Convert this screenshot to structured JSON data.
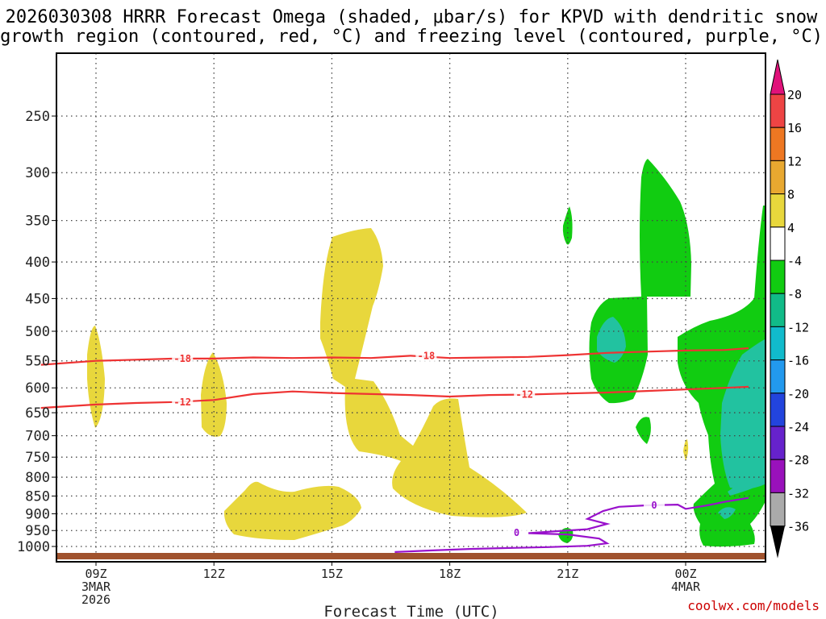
{
  "chart_data": {
    "type": "time-height cross section",
    "title_line1": "2026030308 HRRR Forecast Omega (shaded, μbar/s) for KPVD with dendritic snow",
    "title_line2": "growth region (contoured, red, °C) and freezing level (contoured, purple, °C)",
    "xlabel": "Forecast Time (UTC)",
    "credit": "coolwx.com/models",
    "x_range_hours": [
      7.6,
      25.6
    ],
    "y_range_hpa": [
      1030,
      200
    ],
    "y_ticks": [
      "250",
      "300",
      "350",
      "400",
      "450",
      "500",
      "550",
      "600",
      "650",
      "700",
      "750",
      "800",
      "850",
      "900",
      "950",
      "1000"
    ],
    "x_ticks": [
      {
        "hour": 9,
        "lines": [
          "09Z",
          "3MAR",
          "2026"
        ]
      },
      {
        "hour": 12,
        "lines": [
          "12Z"
        ]
      },
      {
        "hour": 15,
        "lines": [
          "15Z"
        ]
      },
      {
        "hour": 18,
        "lines": [
          "18Z"
        ]
      },
      {
        "hour": 21,
        "lines": [
          "21Z"
        ]
      },
      {
        "hour": 24,
        "lines": [
          "00Z",
          "4MAR"
        ]
      }
    ],
    "colorbar": {
      "labels": [
        "20",
        "16",
        "12",
        "8",
        "4",
        "-4",
        "-8",
        "-12",
        "-16",
        "-20",
        "-24",
        "-28",
        "-32",
        "-36"
      ],
      "colors": [
        "#ee4444",
        "#ee7722",
        "#e8a830",
        "#e8d73c",
        "#ffffff",
        "#11cc11",
        "#11bb88",
        "#11bbcc",
        "#2299ee",
        "#2244dd",
        "#6622cc",
        "#9911bb",
        "#aaaaaa"
      ],
      "top_arrow": "#e0117a",
      "bottom_arrow": "#000000"
    },
    "contours": [
      {
        "name": "-18 °C",
        "label": "-18",
        "color": "#ee3333",
        "points": [
          [
            7.6,
            557
          ],
          [
            9,
            550
          ],
          [
            10,
            548
          ],
          [
            11,
            546
          ],
          [
            12,
            546
          ],
          [
            13,
            544
          ],
          [
            14,
            545
          ],
          [
            15,
            544
          ],
          [
            16,
            545
          ],
          [
            17,
            541
          ],
          [
            18,
            545
          ],
          [
            19,
            544
          ],
          [
            20,
            543
          ],
          [
            21,
            540
          ],
          [
            22,
            536
          ],
          [
            23,
            534
          ],
          [
            24,
            532
          ],
          [
            25,
            531
          ],
          [
            25.6,
            528
          ]
        ],
        "labels": [
          [
            11.2,
            546
          ],
          [
            17.4,
            541
          ]
        ]
      },
      {
        "name": "-12 °C",
        "label": "-12",
        "color": "#ee3333",
        "points": [
          [
            7.6,
            640
          ],
          [
            9,
            633
          ],
          [
            10,
            630
          ],
          [
            11,
            628
          ],
          [
            12,
            624
          ],
          [
            13,
            612
          ],
          [
            14,
            607
          ],
          [
            15,
            610
          ],
          [
            16,
            612
          ],
          [
            17,
            614
          ],
          [
            18,
            617
          ],
          [
            19,
            614
          ],
          [
            20,
            613
          ],
          [
            21,
            611
          ],
          [
            22,
            609
          ],
          [
            23,
            606
          ],
          [
            24,
            603
          ],
          [
            25,
            600
          ],
          [
            25.6,
            598
          ]
        ],
        "labels": [
          [
            11.2,
            628
          ],
          [
            19.9,
            613
          ]
        ]
      },
      {
        "name": "0 °C freezing level",
        "label": "0",
        "color": "#9911cc",
        "points": [
          [
            16.6,
            1018
          ],
          [
            17.5,
            1013
          ],
          [
            18.5,
            1008
          ],
          [
            19.5,
            1005
          ],
          [
            20.5,
            1002
          ],
          [
            21.5,
            998
          ],
          [
            22,
            990
          ],
          [
            21.8,
            975
          ],
          [
            21,
            962
          ],
          [
            20,
            958
          ],
          [
            20.7,
            952
          ],
          [
            21.5,
            946
          ],
          [
            22,
            930
          ],
          [
            21.5,
            915
          ],
          [
            21.9,
            892
          ],
          [
            22.3,
            880
          ],
          [
            23,
            876
          ],
          [
            23.8,
            874
          ],
          [
            24,
            886
          ],
          [
            24.5,
            877
          ],
          [
            25,
            866
          ],
          [
            25.6,
            855
          ]
        ],
        "labels": [
          [
            23.2,
            876
          ],
          [
            19.7,
            957
          ]
        ]
      }
    ]
  }
}
